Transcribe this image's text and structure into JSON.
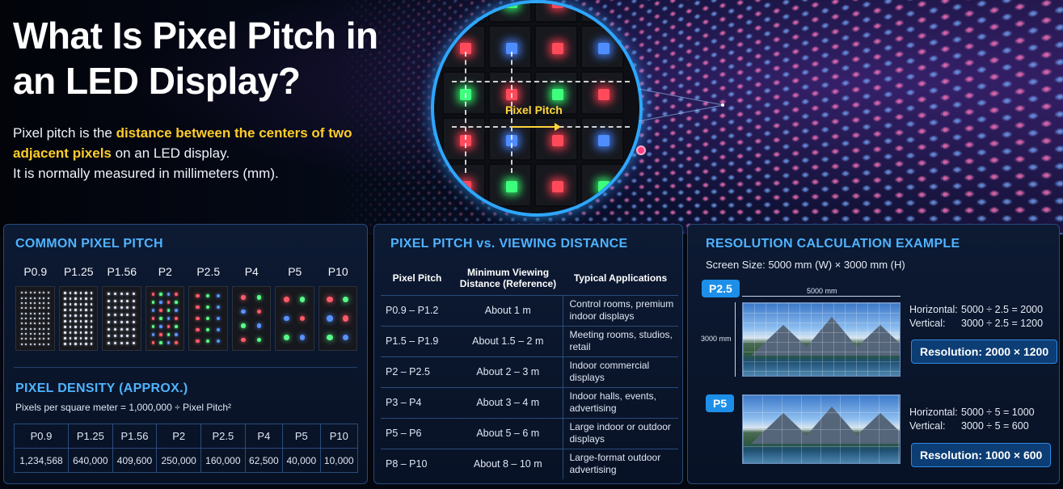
{
  "hero": {
    "title": "What Is Pixel Pitch in an LED Display?",
    "desc_intro": "Pixel pitch is the ",
    "desc_highlight": "distance between the centers of two adjacent pixels",
    "desc_rest": " on an LED display.",
    "desc_line2": "It is normally measured in millimeters (mm).",
    "magnifier_label": "Pixel Pitch",
    "colors": {
      "highlight": "#ffcd2a",
      "accent": "#2ea7ff"
    }
  },
  "common": {
    "heading": "COMMON PIXEL PITCH",
    "pitches": [
      "P0.9",
      "P1.25",
      "P1.56",
      "P2",
      "P2.5",
      "P4",
      "P5",
      "P10"
    ],
    "density_heading": "PIXEL DENSITY (APPROX.)",
    "density_formula": "Pixels per square meter = 1,000,000 ÷ Pixel Pitch²",
    "density_headers": [
      "P0.9",
      "P1.25",
      "P1.56",
      "P2",
      "P2.5",
      "P4",
      "P5",
      "P10"
    ],
    "density_values": [
      "1,234,568",
      "640,000",
      "409,600",
      "250,000",
      "160,000",
      "62,500",
      "40,000",
      "10,000"
    ]
  },
  "viewing": {
    "heading": "PIXEL PITCH vs. VIEWING DISTANCE",
    "col_pitch": "Pixel Pitch",
    "col_distance": "Minimum Viewing Distance (Reference)",
    "col_applications": "Typical Applications",
    "rows": [
      {
        "pitch": "P0.9 – P1.2",
        "distance": "About 1 m",
        "apps": "Control rooms, premium indoor displays"
      },
      {
        "pitch": "P1.5 – P1.9",
        "distance": "About 1.5 – 2 m",
        "apps": "Meeting rooms, studios, retail"
      },
      {
        "pitch": "P2 – P2.5",
        "distance": "About 2 – 3 m",
        "apps": "Indoor commercial displays"
      },
      {
        "pitch": "P3 – P4",
        "distance": "About 3 – 4 m",
        "apps": "Indoor halls, events, advertising"
      },
      {
        "pitch": "P5 – P6",
        "distance": "About 5 – 6 m",
        "apps": "Large indoor or outdoor displays"
      },
      {
        "pitch": "P8 – P10",
        "distance": "About 8 – 10 m",
        "apps": "Large-format outdoor advertising"
      }
    ]
  },
  "resolution": {
    "heading": "RESOLUTION CALCULATION EXAMPLE",
    "screen_size": "Screen Size: 5000 mm (W) × 3000 mm (H)",
    "width_label": "5000 mm",
    "height_label": "3000 mm",
    "example1": {
      "badge": "P2.5",
      "horizontal_label": "Horizontal:",
      "horizontal_calc": "5000 ÷ 2.5 = 2000",
      "vertical_label": "Vertical:",
      "vertical_calc": "3000 ÷ 2.5 = 1200",
      "result": "Resolution: 2000 × 1200"
    },
    "example2": {
      "badge": "P5",
      "horizontal_label": "Horizontal:",
      "horizontal_calc": "5000 ÷ 5 = 1000",
      "vertical_label": "Vertical:",
      "vertical_calc": "3000 ÷ 5 = 600",
      "result": "Resolution: 1000 × 600"
    }
  }
}
